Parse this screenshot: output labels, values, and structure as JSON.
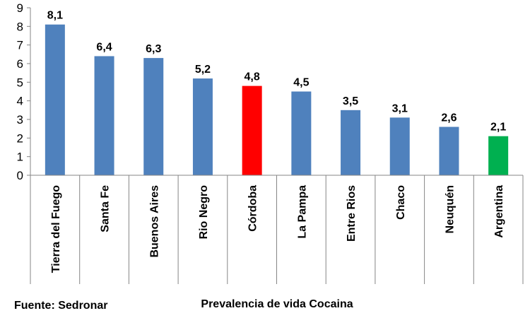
{
  "chart_data": {
    "type": "bar",
    "title": "",
    "xlabel": "Prevalencia de vida Cocaina",
    "ylabel": "",
    "source": "Fuente: Sedronar",
    "ylim": [
      0,
      9
    ],
    "yticks": [
      0,
      1,
      2,
      3,
      4,
      5,
      6,
      7,
      8,
      9
    ],
    "grid": false,
    "categories": [
      "Tierra del Fuego",
      "Santa Fe",
      "Buenos Aires",
      "Rio Negro",
      "Córdoba",
      "La Pampa",
      "Entre Rios",
      "Chaco",
      "Neuquén",
      "Argentina"
    ],
    "values": [
      8.1,
      6.4,
      6.3,
      5.2,
      4.8,
      4.5,
      3.5,
      3.1,
      2.6,
      2.1
    ],
    "data_labels": [
      "8,1",
      "6,4",
      "6,3",
      "5,2",
      "4,8",
      "4,5",
      "3,5",
      "3,1",
      "2,6",
      "2,1"
    ],
    "colors": [
      "#4F81BD",
      "#4F81BD",
      "#4F81BD",
      "#4F81BD",
      "#FF0000",
      "#4F81BD",
      "#4F81BD",
      "#4F81BD",
      "#4F81BD",
      "#00B050"
    ]
  }
}
